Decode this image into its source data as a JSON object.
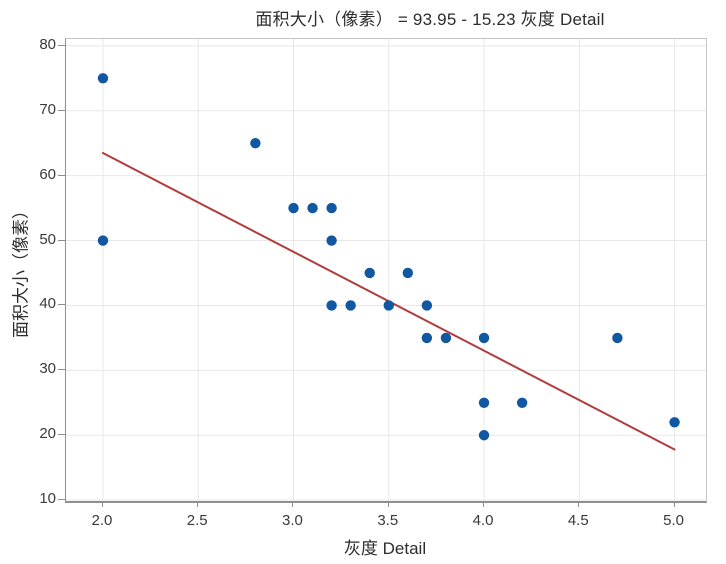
{
  "chart_data": {
    "type": "scatter",
    "title": "面积大小（像素） = 93.95 - 15.23 灰度 Detail",
    "xlabel": "灰度 Detail",
    "ylabel": "面积大小（像素）",
    "x_ticks": [
      "2.0",
      "2.5",
      "3.0",
      "3.5",
      "4.0",
      "4.5",
      "5.0"
    ],
    "x_tick_values": [
      2.0,
      2.5,
      3.0,
      3.5,
      4.0,
      4.5,
      5.0
    ],
    "y_ticks": [
      "10",
      "20",
      "30",
      "40",
      "50",
      "60",
      "70",
      "80"
    ],
    "y_tick_values": [
      10,
      20,
      30,
      40,
      50,
      60,
      70,
      80
    ],
    "xlim": [
      1.806,
      5.165
    ],
    "ylim": [
      9.87,
      81.05
    ],
    "grid": true,
    "legend": "none",
    "points": [
      [
        2.0,
        75
      ],
      [
        2.0,
        50
      ],
      [
        2.8,
        65
      ],
      [
        3.0,
        55
      ],
      [
        3.1,
        55
      ],
      [
        3.2,
        55
      ],
      [
        3.2,
        50
      ],
      [
        3.2,
        40
      ],
      [
        3.3,
        40
      ],
      [
        3.4,
        45
      ],
      [
        3.6,
        45
      ],
      [
        3.5,
        40
      ],
      [
        3.7,
        40
      ],
      [
        3.7,
        35
      ],
      [
        3.8,
        35
      ],
      [
        4.0,
        35
      ],
      [
        4.0,
        25
      ],
      [
        4.0,
        20
      ],
      [
        4.2,
        25
      ],
      [
        4.7,
        35
      ],
      [
        5.0,
        22
      ]
    ],
    "fit_line": {
      "equation": "面积大小（像素） = 93.95 - 15.23 灰度 Detail",
      "intercept": 93.95,
      "slope": -15.23,
      "x_start": 2.0,
      "x_end": 5.0
    },
    "colors": {
      "marker": "#1257a2",
      "fit_line": "#b13c3c",
      "grid": "#e8e8e8",
      "frame": "#c6c6c6",
      "axis": "#8f8f8f",
      "tick_text": "#3a3a3a",
      "title_text": "#2d2d2d"
    }
  }
}
